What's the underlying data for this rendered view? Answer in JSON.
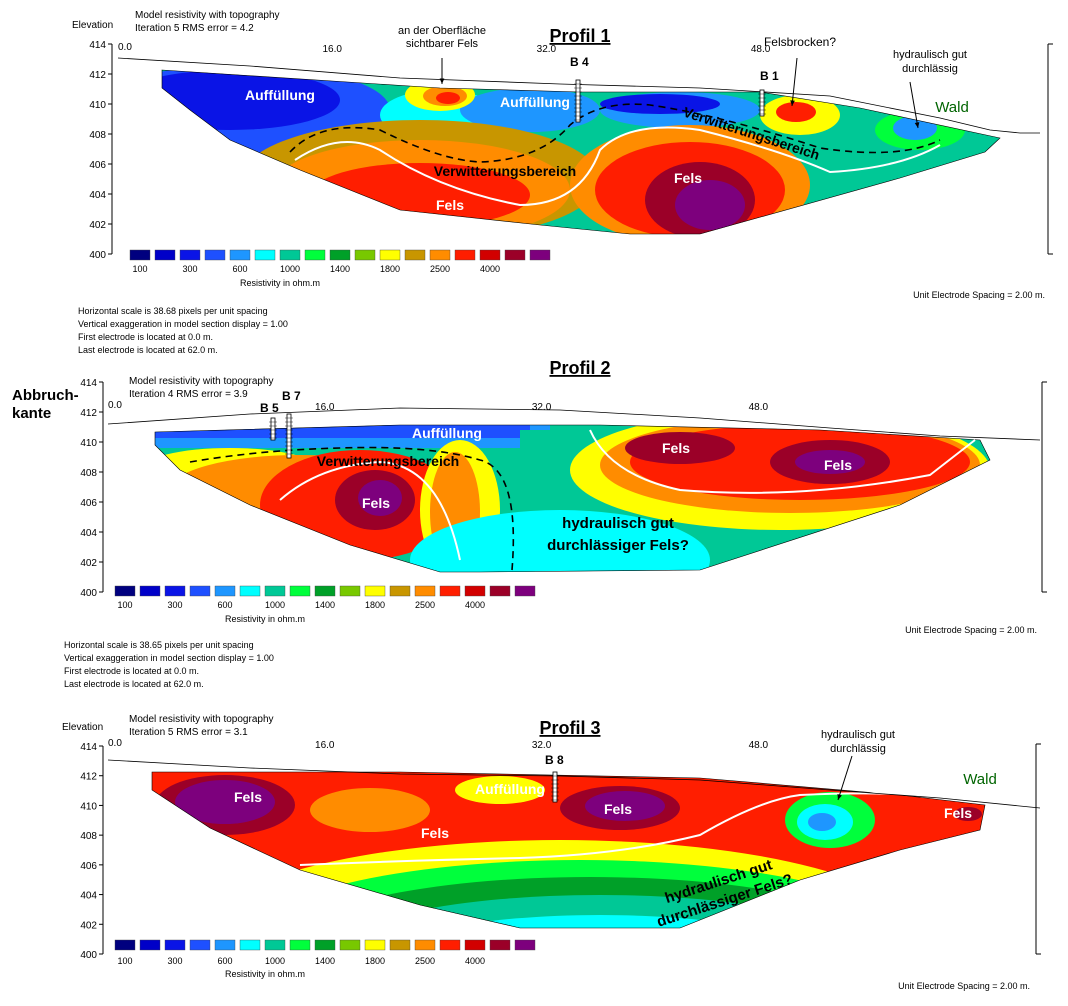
{
  "legend": {
    "colors": [
      "#00007f",
      "#0000c8",
      "#0a14e6",
      "#1e50ff",
      "#1e96ff",
      "#00ffff",
      "#00c896",
      "#00ff3c",
      "#00a028",
      "#78c800",
      "#ffff00",
      "#c89600",
      "#ff8c00",
      "#ff1e00",
      "#d20000",
      "#9b0028",
      "#7d007d"
    ],
    "tick_labels": [
      "100",
      "300",
      "600",
      "1000",
      "1400",
      "1800",
      "2500",
      "4000"
    ],
    "title": "Resistivity in ohm.m"
  },
  "chart_data": [
    {
      "type": "heatmap",
      "title": "Profil 1",
      "header_lines": [
        "Model resistivity with topography",
        "Iteration 5 RMS error = 4.2"
      ],
      "ylabel": "Elevation",
      "y_ticks": [
        "414",
        "412",
        "410",
        "408",
        "406",
        "404",
        "402",
        "400"
      ],
      "ylim": [
        400,
        414
      ],
      "x_ticks": [
        "0.0",
        "16.0",
        "32.0",
        "48.0"
      ],
      "xlim": [
        0,
        62
      ],
      "boreholes": [
        "B 4",
        "B 1"
      ],
      "annotations": [
        "an der Oberfläche\nsichtbarer Fels",
        "Felsbrocken?",
        "hydraulisch gut\ndurchlässig",
        "Wald",
        "Auffüllung",
        "Auffüllung",
        "Verwitterungsbereich",
        "Verwitterungsbereich",
        "Fels",
        "Fels"
      ],
      "footer_right": "Unit Electrode Spacing = 2.00 m.",
      "footer_lines": [
        "Horizontal scale is 38.68 pixels per unit spacing",
        "Vertical exaggeration in model section display = 1.00",
        "First electrode is located at 0.0  m.",
        "Last electrode is located at 62.0 m."
      ]
    },
    {
      "type": "heatmap",
      "title": "Profil 2",
      "header_lines": [
        "Model resistivity with topography",
        "Iteration 4 RMS error = 3.9"
      ],
      "side_label": [
        "Abbruch-",
        "kante"
      ],
      "y_ticks": [
        "414",
        "412",
        "410",
        "408",
        "406",
        "404",
        "402",
        "400"
      ],
      "ylim": [
        400,
        414
      ],
      "x_ticks": [
        "0.0",
        "16.0",
        "32.0",
        "48.0"
      ],
      "xlim": [
        0,
        62
      ],
      "boreholes": [
        "B 5",
        "B 7"
      ],
      "annotations": [
        "Auffüllung",
        "Verwitterungsbereich",
        "Fels",
        "Fels",
        "Fels",
        "hydraulisch gut\ndurchlässiger Fels?"
      ],
      "footer_right": "Unit Electrode Spacing = 2.00 m.",
      "footer_lines": [
        "Horizontal scale is 38.65 pixels per unit spacing",
        "Vertical exaggeration in model section display = 1.00",
        "First electrode is located at 0.0  m.",
        "Last electrode is located at 62.0 m."
      ]
    },
    {
      "type": "heatmap",
      "title": "Profil 3",
      "header_lines": [
        "Model resistivity with topography",
        "Iteration 5 RMS error = 3.1"
      ],
      "ylabel": "Elevation",
      "y_ticks": [
        "414",
        "412",
        "410",
        "408",
        "406",
        "404",
        "402",
        "400"
      ],
      "ylim": [
        400,
        414
      ],
      "x_ticks": [
        "0.0",
        "16.0",
        "32.0",
        "48.0"
      ],
      "xlim": [
        0,
        62
      ],
      "boreholes": [
        "B 8"
      ],
      "annotations": [
        "hydraulisch gut\ndurchlässig",
        "Wald",
        "Auffüllung",
        "Fels",
        "Fels",
        "Fels",
        "Fels",
        "hydraulisch gut\ndurchlässiger Fels?"
      ],
      "footer_right": "Unit Electrode Spacing = 2.00 m."
    }
  ]
}
